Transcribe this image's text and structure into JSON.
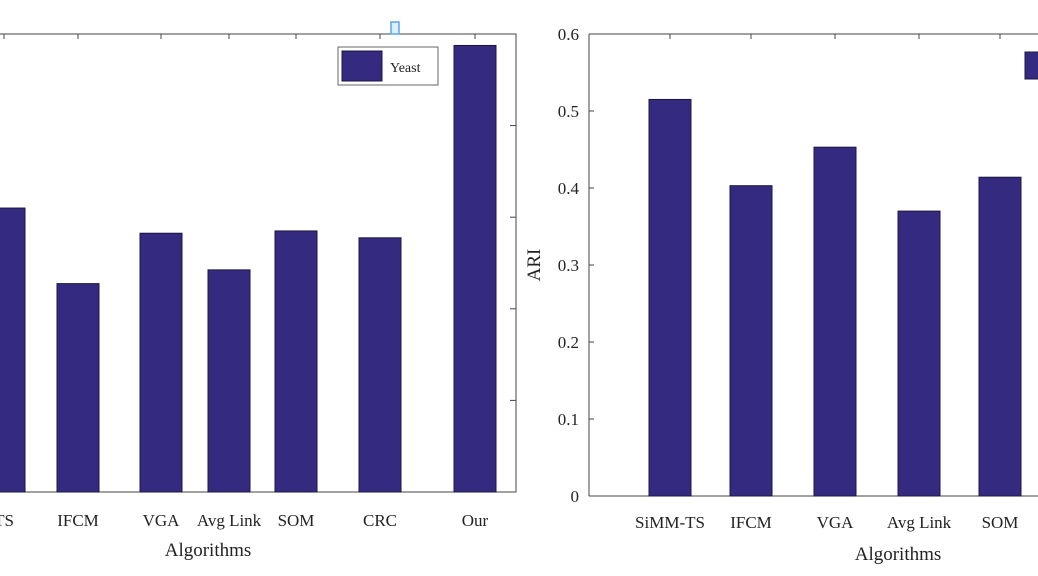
{
  "colors": {
    "bar": "#342a80",
    "bar_stroke": "#1c1640",
    "axis": "#444444",
    "marker": "#5aa9e6"
  },
  "chart_data": [
    {
      "type": "bar",
      "title": "",
      "xlabel": "Algorithms",
      "ylabel": "",
      "ylim": [
        0,
        1
      ],
      "grid": false,
      "legend": {
        "position": "top-right",
        "entries": [
          "Yeast"
        ]
      },
      "categories": [
        "SiMM-TS",
        "IFCM",
        "VGA",
        "Avg Link",
        "SOM",
        "CRC",
        "Our"
      ],
      "category_labels": [
        "TS",
        "IFCM",
        "VGA",
        "Avg Link",
        "SOM",
        "CRC",
        "Our"
      ],
      "series": [
        {
          "name": "Yeast",
          "values": [
            0.62,
            0.455,
            0.565,
            0.485,
            0.57,
            0.555,
            0.975
          ]
        }
      ]
    },
    {
      "type": "bar",
      "title": "",
      "xlabel": "Algorithms",
      "ylabel": "ARI",
      "ylim": [
        0,
        0.6
      ],
      "yticks": [
        "0",
        "0.1",
        "0.2",
        "0.3",
        "0.4",
        "0.5",
        "0.6"
      ],
      "grid": false,
      "legend": {
        "position": "top-right",
        "entries": []
      },
      "categories": [
        "SiMM-TS",
        "IFCM",
        "VGA",
        "Avg Link",
        "SOM"
      ],
      "category_labels": [
        "SiMM-TS",
        "IFCM",
        "VGA",
        "Avg Link",
        "SOM"
      ],
      "series": [
        {
          "values": [
            0.515,
            0.403,
            0.453,
            0.37,
            0.414
          ]
        }
      ]
    }
  ]
}
